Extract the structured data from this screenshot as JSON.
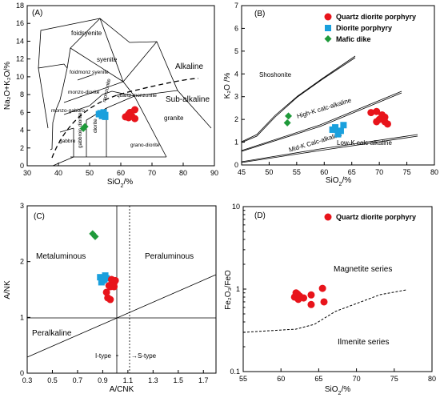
{
  "colors": {
    "quartz": "#e8141b",
    "diorite": "#1aa0dd",
    "mafic": "#1f9a3a"
  },
  "chart_data": [
    {
      "type": "scatter",
      "panel_label": "(A)",
      "xlabel_main": "SiO",
      "xlabel_sub": "2",
      "xlabel_tail": "/%",
      "ylabel": "Na₂O+K₂O/%",
      "xlim": [
        30,
        90
      ],
      "ylim": [
        0,
        18
      ],
      "xticks": [
        30,
        40,
        50,
        60,
        70,
        80,
        90
      ],
      "yticks": [
        0,
        2,
        4,
        6,
        8,
        10,
        12,
        14,
        16,
        18
      ],
      "field_labels": [
        "foidsyenite",
        "syenite",
        "foidmonz syenite",
        "monzo-diorite",
        "monzonite",
        "quartz monzonite",
        "monzo-gabbro",
        "gabbroic diorite",
        "diorite",
        "grano-diorite",
        "granite",
        "gabbro",
        "Alkaline",
        "Sub-alkaline"
      ],
      "series": [
        {
          "name": "Quartz diorite porphyry",
          "points": [
            [
              61.5,
              5.5
            ],
            [
              62.5,
              5.4
            ],
            [
              63.5,
              5.6
            ],
            [
              64.5,
              5.3
            ],
            [
              63.0,
              6.0
            ],
            [
              64.5,
              6.3
            ],
            [
              62.5,
              5.8
            ]
          ]
        },
        {
          "name": "Diorite porphyry",
          "points": [
            [
              53.0,
              5.8
            ],
            [
              54.0,
              5.6
            ],
            [
              55.0,
              5.7
            ],
            [
              54.5,
              6.0
            ],
            [
              53.5,
              5.9
            ],
            [
              55.0,
              5.5
            ]
          ]
        },
        {
          "name": "Mafic dike",
          "points": [
            [
              48.5,
              4.4
            ],
            [
              48.0,
              4.2
            ]
          ]
        }
      ]
    },
    {
      "type": "scatter",
      "panel_label": "(B)",
      "xlabel_main": "SiO",
      "xlabel_sub": "2",
      "xlabel_tail": "/%",
      "ylabel": "K₂O /%",
      "xlim": [
        45,
        80
      ],
      "ylim": [
        0,
        7
      ],
      "xticks": [
        45,
        50,
        55,
        60,
        65,
        70,
        75,
        80
      ],
      "yticks": [
        0,
        1,
        2,
        3,
        4,
        5,
        6,
        7
      ],
      "field_labels": [
        "Shoshonite",
        "High-K calc-alkaline",
        "Mid-K Calc-alkaline",
        "Low-K calc-alkaline"
      ],
      "legend": [
        "Quartz diorite porphyry",
        "Diorite porphyry",
        "Mafic dike"
      ],
      "series": [
        {
          "name": "Quartz diorite porphyry",
          "points": [
            [
              68.5,
              2.3
            ],
            [
              69.5,
              2.35
            ],
            [
              70.5,
              2.2
            ],
            [
              70.0,
              2.0
            ],
            [
              71.0,
              1.9
            ],
            [
              71.5,
              1.8
            ],
            [
              69.5,
              1.9
            ],
            [
              71.0,
              2.1
            ]
          ]
        },
        {
          "name": "Diorite porphyry",
          "points": [
            [
              61.5,
              1.55
            ],
            [
              62.0,
              1.65
            ],
            [
              62.5,
              1.45
            ],
            [
              63.0,
              1.5
            ],
            [
              63.5,
              1.75
            ],
            [
              62.5,
              1.35
            ]
          ]
        },
        {
          "name": "Mafic dike",
          "points": [
            [
              53.5,
              2.15
            ],
            [
              53.3,
              1.85
            ]
          ]
        }
      ]
    },
    {
      "type": "scatter",
      "panel_label": "(C)",
      "xlabel": "A/CNK",
      "ylabel": "A/NK",
      "xlim": [
        0.3,
        1.8
      ],
      "ylim": [
        0,
        3
      ],
      "xticks": [
        0.3,
        0.5,
        0.7,
        0.9,
        1.1,
        1.3,
        1.5,
        1.7
      ],
      "yticks": [
        0,
        1,
        2,
        3
      ],
      "field_labels": [
        "Metaluminous",
        "Peraluminous",
        "Peralkaline",
        "I-type",
        "→S-type"
      ],
      "series": [
        {
          "name": "Diorite porphyry",
          "points": [
            [
              0.88,
              1.72
            ],
            [
              0.91,
              1.68
            ],
            [
              0.92,
              1.75
            ],
            [
              0.89,
              1.63
            ],
            [
              0.93,
              1.7
            ],
            [
              0.9,
              1.66
            ]
          ]
        },
        {
          "name": "Quartz diorite porphyry",
          "points": [
            [
              0.97,
              1.68
            ],
            [
              0.99,
              1.62
            ],
            [
              1.0,
              1.66
            ],
            [
              0.95,
              1.57
            ],
            [
              0.96,
              1.55
            ],
            [
              0.99,
              1.55
            ],
            [
              0.93,
              1.45
            ],
            [
              0.94,
              1.35
            ],
            [
              0.96,
              1.32
            ],
            [
              0.98,
              1.57
            ]
          ]
        },
        {
          "name": "Mafic dike",
          "points": [
            [
              0.82,
              2.5
            ],
            [
              0.84,
              2.45
            ]
          ]
        }
      ]
    },
    {
      "type": "scatter",
      "panel_label": "(D)",
      "xlabel_main": "SiO",
      "xlabel_sub": "2",
      "xlabel_tail": "/%",
      "ylabel": "Fe₂O₃/FeO",
      "xlim": [
        55,
        80
      ],
      "ylim": [
        0.1,
        10
      ],
      "yscale": "log",
      "xticks": [
        55,
        60,
        65,
        70,
        75,
        80
      ],
      "yticks": [
        "0.1",
        "1",
        "10"
      ],
      "field_labels": [
        "Magnetite series",
        "Ilmenite series"
      ],
      "legend": [
        "Quartz diorite porphyry"
      ],
      "series": [
        {
          "name": "Quartz diorite porphyry",
          "points": [
            [
              61.8,
              0.8
            ],
            [
              62.0,
              0.9
            ],
            [
              62.3,
              0.75
            ],
            [
              62.5,
              0.82
            ],
            [
              63.0,
              0.78
            ],
            [
              64.0,
              0.85
            ],
            [
              64.0,
              0.65
            ],
            [
              65.5,
              1.02
            ],
            [
              65.7,
              0.7
            ],
            [
              62.2,
              0.87
            ]
          ]
        }
      ]
    }
  ]
}
